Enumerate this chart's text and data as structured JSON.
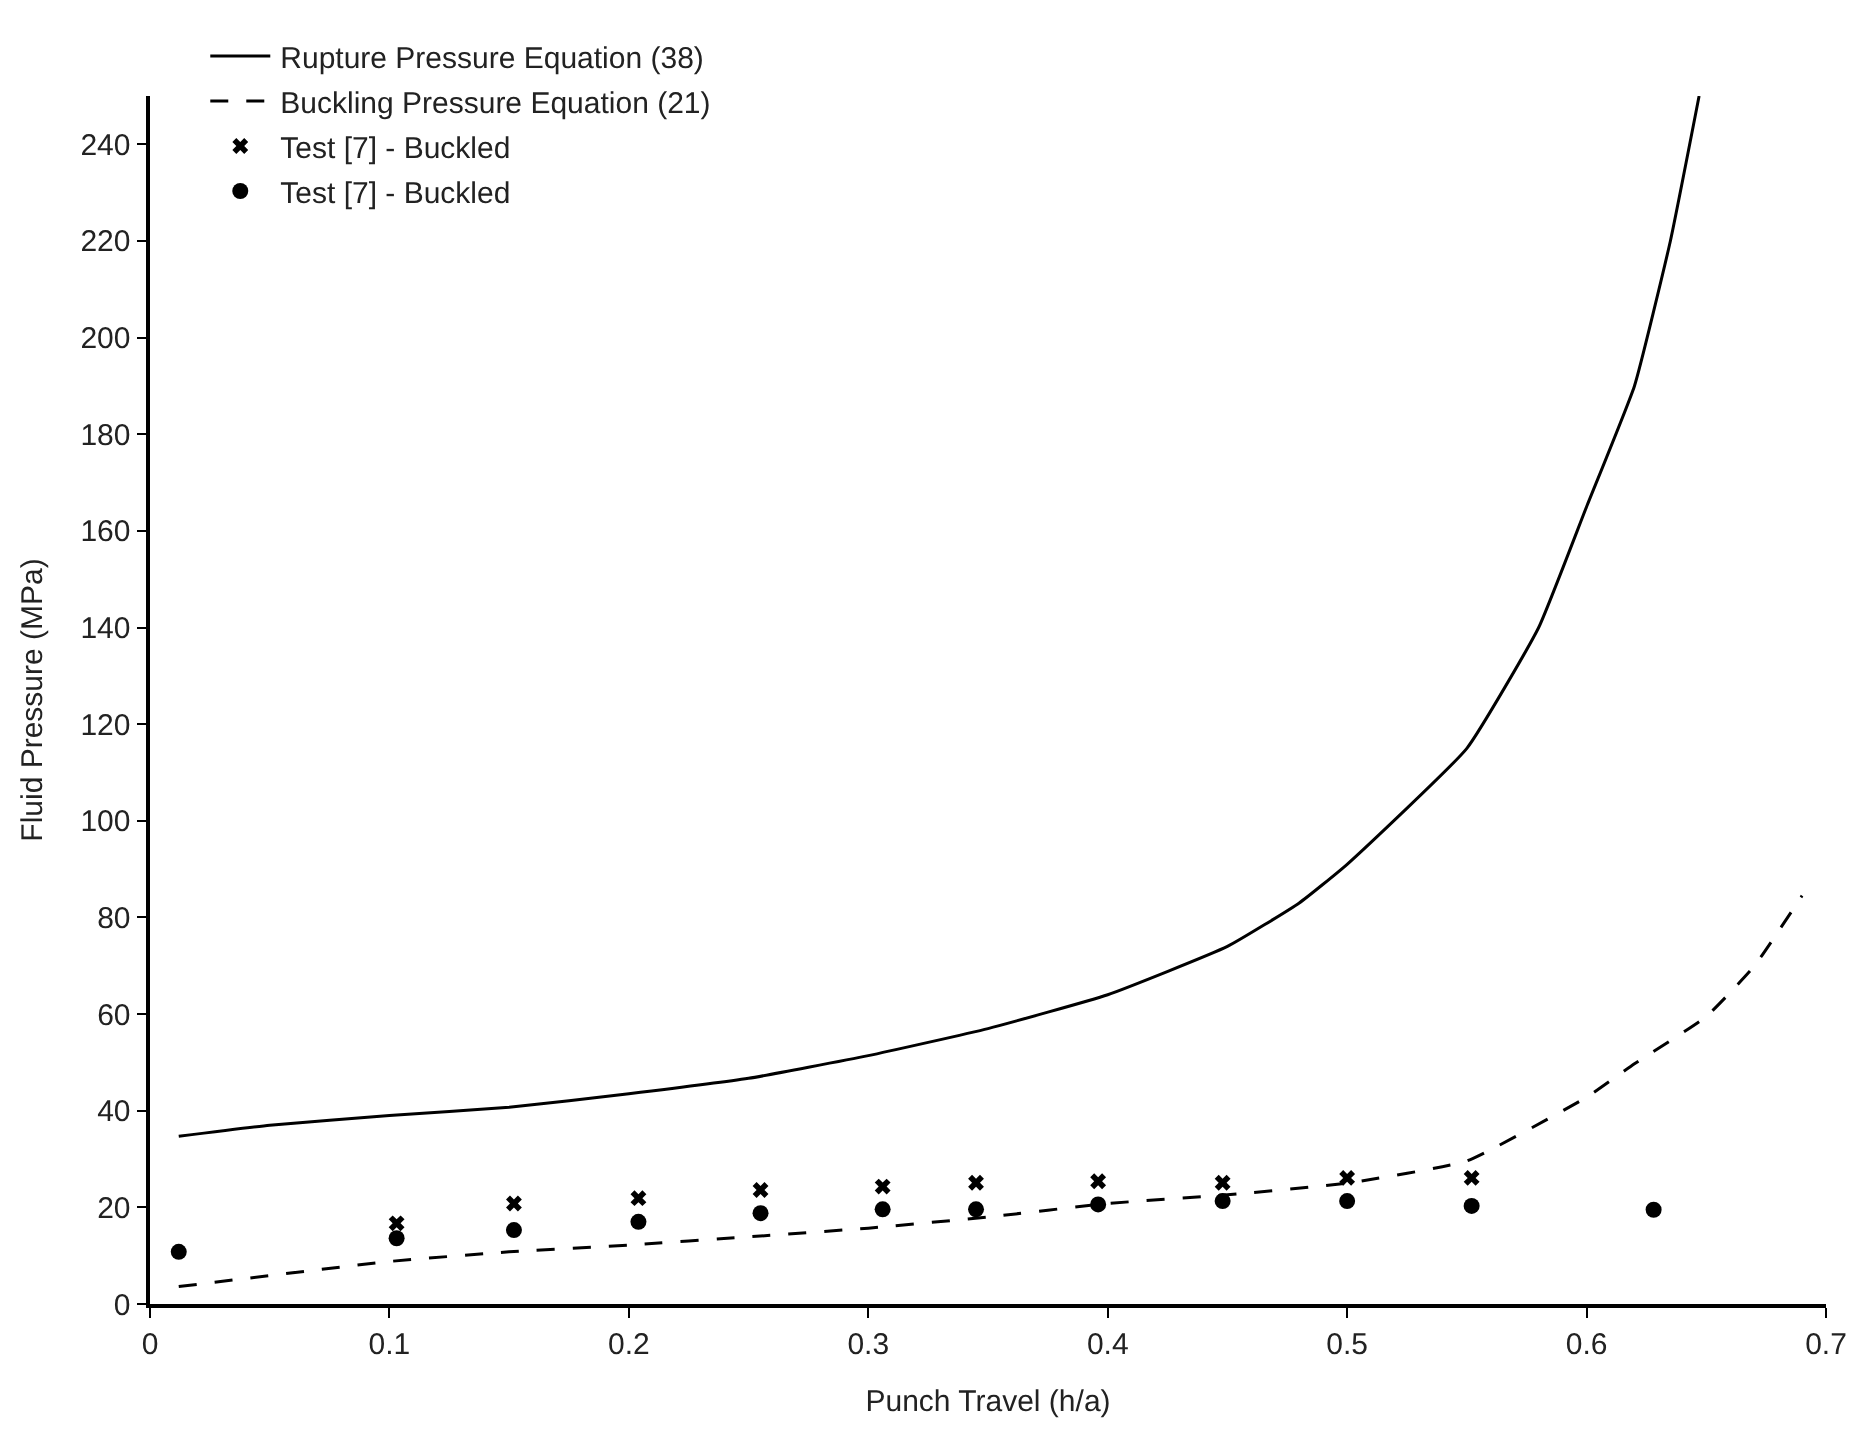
{
  "chart_data": {
    "type": "line",
    "xlabel": "Punch Travel (h/a)",
    "ylabel": "Fluid Pressure (MPa)",
    "xlim": [
      0,
      0.7
    ],
    "xticks": [
      0,
      0.1,
      0.2,
      0.3,
      0.4,
      0.5,
      0.6,
      0.7
    ],
    "ylim": [
      0,
      250
    ],
    "yticks": [
      0,
      20,
      40,
      60,
      80,
      100,
      120,
      140,
      160,
      180,
      200,
      220,
      240
    ],
    "legend": "top left",
    "series": [
      {
        "name": "Rupture Pressure Equation (38)",
        "color": "#000000",
        "line_style": "solid",
        "marker": "none",
        "x": [
          0.012,
          0.05,
          0.1,
          0.15,
          0.2,
          0.25,
          0.3,
          0.35,
          0.4,
          0.45,
          0.48,
          0.5,
          0.55,
          0.58,
          0.6,
          0.62,
          0.635,
          0.647
        ],
        "values": [
          34.7,
          37,
          39,
          40.7,
          43.5,
          46.7,
          51.4,
          57,
          64,
          74,
          83,
          91,
          115,
          140,
          165,
          190,
          220,
          250
        ]
      },
      {
        "name": "Buckling Pressure Equation (21)",
        "color": "#000000",
        "line_style": "dashed",
        "marker": "none",
        "x": [
          0.012,
          0.1,
          0.15,
          0.2,
          0.25,
          0.3,
          0.35,
          0.4,
          0.45,
          0.5,
          0.55,
          0.6,
          0.62,
          0.65,
          0.67,
          0.69
        ],
        "values": [
          3.6,
          8.8,
          10.8,
          12.2,
          13.9,
          15.7,
          18,
          20.8,
          22.6,
          25,
          29.6,
          42.8,
          49.7,
          59.5,
          69.9,
          84.5
        ]
      },
      {
        "name": "Test [7] - Buckled",
        "type": "scatter",
        "color": "#000000",
        "marker": "cross",
        "x": [
          0.103,
          0.152,
          0.204,
          0.255,
          0.306,
          0.345,
          0.396,
          0.448,
          0.5,
          0.552
        ],
        "values": [
          16.7,
          20.8,
          21.9,
          23.6,
          24.3,
          25.1,
          25.4,
          25.1,
          26.1,
          26.1
        ]
      },
      {
        "name": "Test [7] - Buckled",
        "type": "scatter",
        "color": "#000000",
        "marker": "circle",
        "x": [
          0.012,
          0.103,
          0.152,
          0.204,
          0.255,
          0.306,
          0.345,
          0.396,
          0.448,
          0.5,
          0.552,
          0.628
        ],
        "values": [
          10.8,
          13.6,
          15.3,
          17.0,
          18.8,
          19.6,
          19.6,
          20.6,
          21.3,
          21.3,
          20.3,
          19.5
        ]
      }
    ]
  }
}
